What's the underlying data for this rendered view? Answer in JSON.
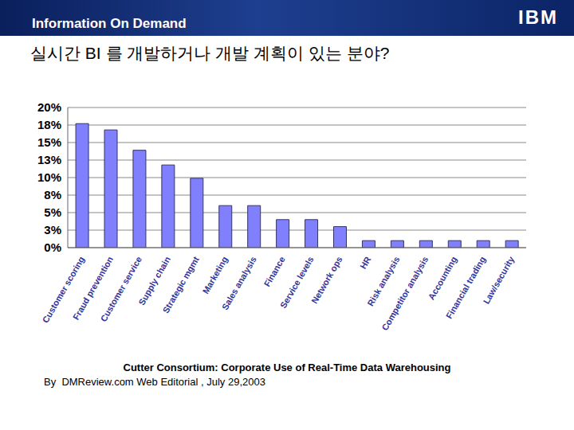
{
  "header": {
    "text": "Information On Demand",
    "logo": "IBM"
  },
  "chart_data": {
    "type": "bar",
    "title": "실시간 BI 를 개발하거나 개발 계획이 있는 분야?",
    "categories": [
      "Customer scoring",
      "Fraud prevention",
      "Customer service",
      "Supply chain",
      "Strategic mgmt",
      "Marketing",
      "Sales analysis",
      "Finance",
      "Service levels",
      "Network ops",
      "HR",
      "Risk analysis",
      "Competitor analysis",
      "Accounting",
      "Financial trading",
      "Law/security"
    ],
    "values": [
      17.7,
      16.8,
      13.9,
      11.8,
      9.9,
      6.0,
      6.0,
      4.0,
      4.0,
      3.0,
      1.0,
      1.0,
      1.0,
      1.0,
      1.0,
      1.0
    ],
    "color": "#8080ff",
    "ylim": [
      0,
      20
    ],
    "yticks": [
      {
        "value": 0,
        "label": "0%"
      },
      {
        "value": 2.5,
        "label": "3%"
      },
      {
        "value": 5,
        "label": "5%"
      },
      {
        "value": 7.5,
        "label": "8%"
      },
      {
        "value": 10,
        "label": "10%"
      },
      {
        "value": 12.5,
        "label": "13%"
      },
      {
        "value": 15,
        "label": "15%"
      },
      {
        "value": 17.5,
        "label": "18%"
      },
      {
        "value": 20,
        "label": "20%"
      }
    ],
    "grid": true
  },
  "source": {
    "title": "Cutter Consortium: Corporate Use of Real-Time Data Warehousing",
    "byline": "By  DMReview.com Web Editorial , July 29,2003"
  }
}
